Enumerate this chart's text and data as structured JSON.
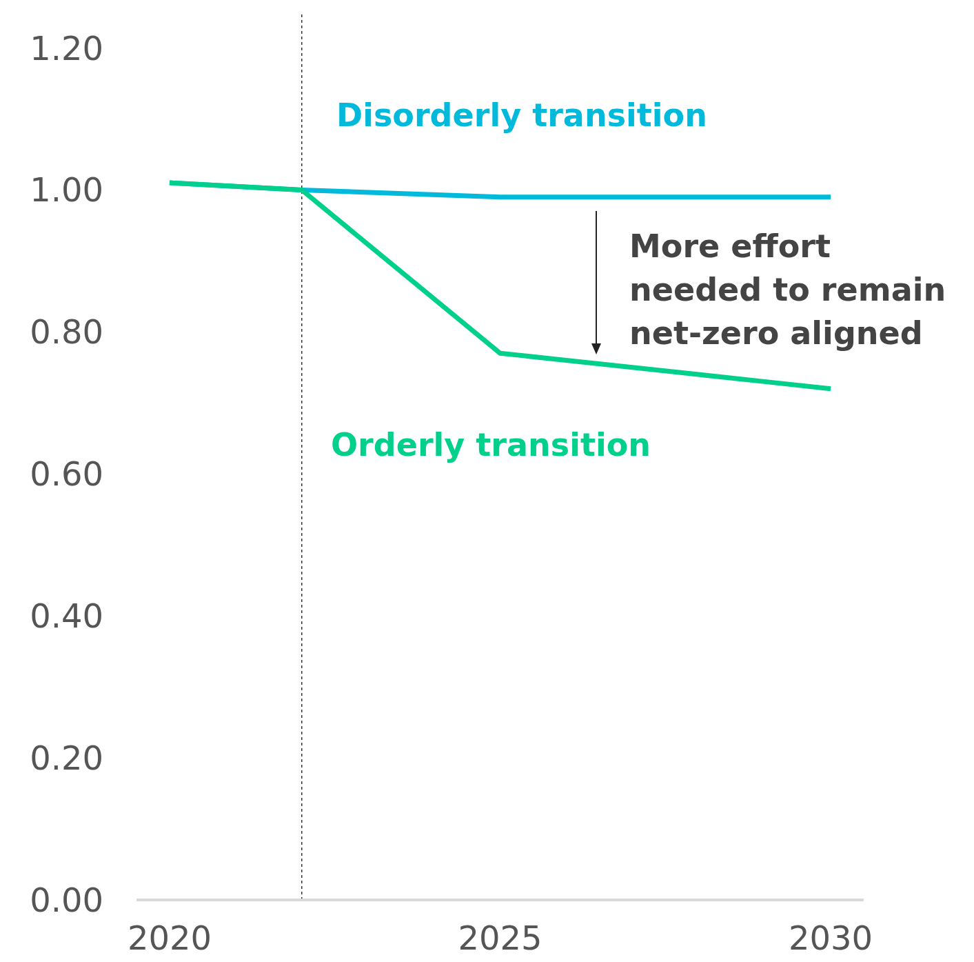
{
  "chart_data": {
    "type": "line",
    "xlim": [
      2019.5,
      2030.5
    ],
    "xticks": [
      2020,
      2025,
      2030
    ],
    "ylim": [
      0,
      1.25
    ],
    "yticks": [
      {
        "value": 0,
        "label": "0.00"
      },
      {
        "value": 0.2,
        "label": "0.20"
      },
      {
        "value": 0.4,
        "label": "0.40"
      },
      {
        "value": 0.6,
        "label": "0.60"
      },
      {
        "value": 0.8,
        "label": "0.80"
      },
      {
        "value": 1,
        "label": "1.00"
      },
      {
        "value": 1.2,
        "label": "1.20"
      }
    ],
    "grid": false,
    "legend": false,
    "marker": "none",
    "series": [
      {
        "name": "Disorderly transition",
        "color": "#00b9db",
        "x": [
          2020,
          2022,
          2025,
          2030
        ],
        "values": [
          1.01,
          1.0,
          0.99,
          0.99
        ]
      },
      {
        "name": "Orderly transition",
        "color": "#00d08c",
        "x": [
          2020,
          2022,
          2025,
          2026,
          2027,
          2028,
          2029,
          2030
        ],
        "values": [
          1.01,
          1.0,
          0.77,
          0.76,
          0.75,
          0.74,
          0.73,
          0.72
        ]
      }
    ],
    "ref_lines": [
      {
        "axis": "x",
        "value": 2022,
        "color": "#333333",
        "line_style": "dashed"
      }
    ],
    "annotations": [
      "More effort needed to remain net-zero aligned"
    ]
  }
}
